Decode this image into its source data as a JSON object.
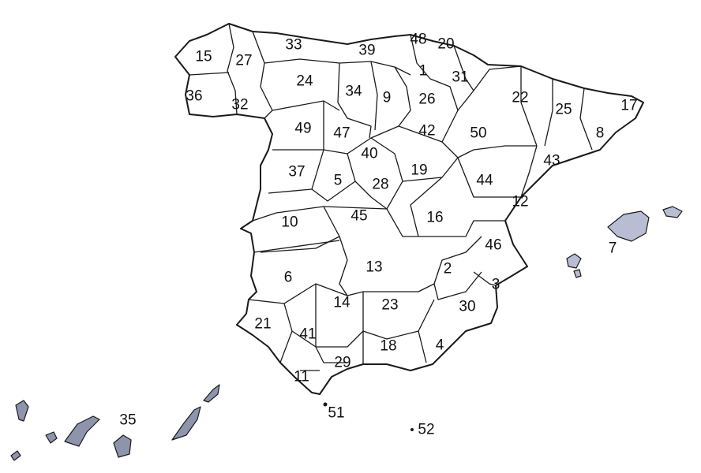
{
  "map": {
    "colors": {
      "north": "#cdd2de",
      "center": "#bfc4d8",
      "south": "#aeb1cf",
      "islands": "#8a8fa8",
      "border": "#1a1a1a"
    },
    "provinces": [
      {
        "code": "15"
      },
      {
        "code": "27"
      },
      {
        "code": "33"
      },
      {
        "code": "39"
      },
      {
        "code": "48"
      },
      {
        "code": "20"
      },
      {
        "code": "1"
      },
      {
        "code": "31"
      },
      {
        "code": "36"
      },
      {
        "code": "32"
      },
      {
        "code": "24"
      },
      {
        "code": "34"
      },
      {
        "code": "9"
      },
      {
        "code": "26"
      },
      {
        "code": "22"
      },
      {
        "code": "25"
      },
      {
        "code": "17"
      },
      {
        "code": "8"
      },
      {
        "code": "49"
      },
      {
        "code": "47"
      },
      {
        "code": "42"
      },
      {
        "code": "50"
      },
      {
        "code": "40"
      },
      {
        "code": "43"
      },
      {
        "code": "37"
      },
      {
        "code": "5"
      },
      {
        "code": "28"
      },
      {
        "code": "19"
      },
      {
        "code": "44"
      },
      {
        "code": "12"
      },
      {
        "code": "10"
      },
      {
        "code": "45"
      },
      {
        "code": "16"
      },
      {
        "code": "7"
      },
      {
        "code": "46"
      },
      {
        "code": "6"
      },
      {
        "code": "13"
      },
      {
        "code": "2"
      },
      {
        "code": "3"
      },
      {
        "code": "14"
      },
      {
        "code": "23"
      },
      {
        "code": "30"
      },
      {
        "code": "21"
      },
      {
        "code": "41"
      },
      {
        "code": "18"
      },
      {
        "code": "4"
      },
      {
        "code": "29"
      },
      {
        "code": "11"
      },
      {
        "code": "51"
      },
      {
        "code": "35"
      },
      {
        "code": "52"
      }
    ]
  }
}
